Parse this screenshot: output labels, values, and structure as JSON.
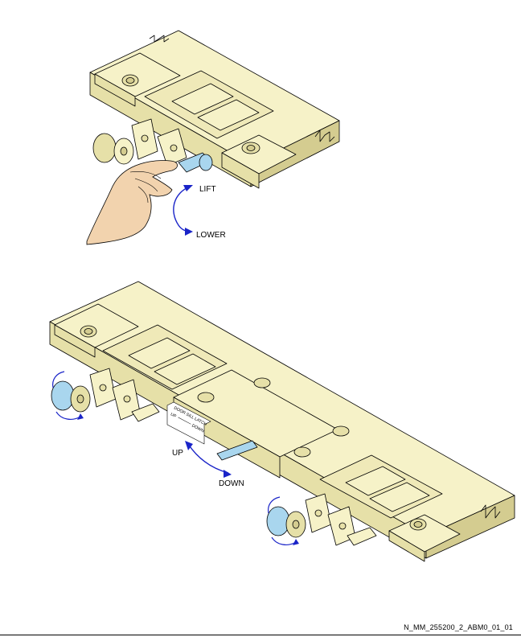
{
  "colors": {
    "part_fill": "#f6f2c8",
    "part_shade": "#e6e0a8",
    "part_dark": "#d4cc90",
    "outline": "#000000",
    "handle_blue": "#a9d6ee",
    "hand_fill": "#f2d3ae",
    "arrow_blue": "#1a24c8"
  },
  "top_view": {
    "lift_label": "LIFT",
    "lower_label": "LOWER"
  },
  "bottom_view": {
    "placard_line1": "DOOR SILL LATCH",
    "placard_up": "UP",
    "placard_down": "DOWN",
    "up_label": "UP",
    "down_label": "DOWN"
  },
  "figure_ref": "N_MM_255200_2_ABM0_01_01"
}
